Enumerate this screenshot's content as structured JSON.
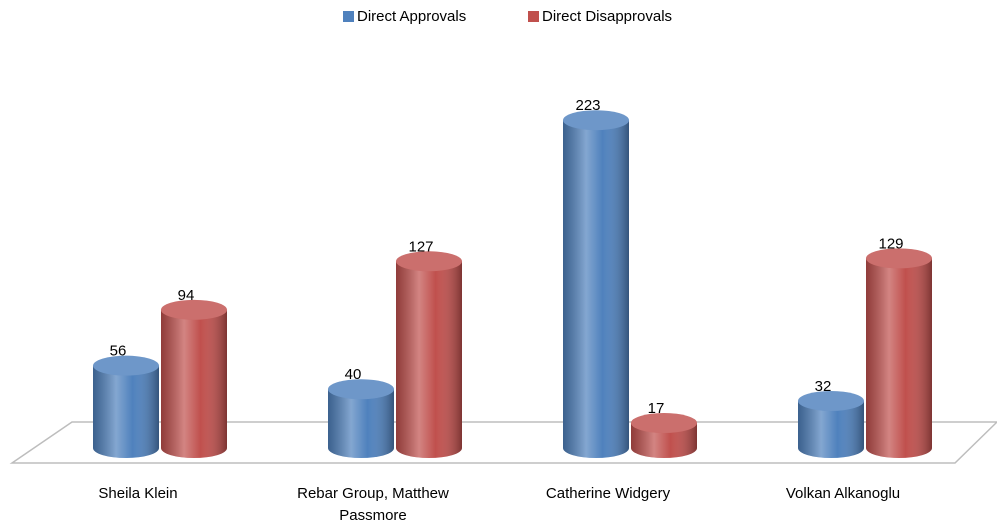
{
  "chart_data": {
    "type": "bar3d",
    "categories": [
      "Sheila Klein",
      "Rebar Group, Matthew Passmore",
      "Catherine Widgery",
      "Volkan Alkanoglu"
    ],
    "series": [
      {
        "name": "Direct Approvals",
        "color": "#4f81bd",
        "values": [
          56,
          40,
          223,
          32
        ]
      },
      {
        "name": "Direct Disapprovals",
        "color": "#c0504d",
        "values": [
          94,
          127,
          17,
          129
        ]
      }
    ],
    "ylim": [
      0,
      250
    ],
    "legend": "top"
  }
}
